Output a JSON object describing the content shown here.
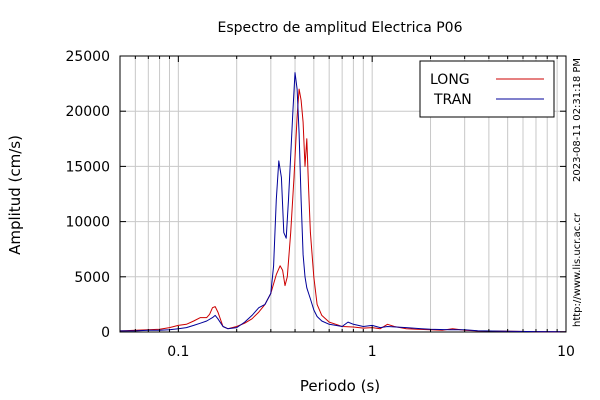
{
  "chart_data": {
    "type": "line",
    "title": "Espectro de amplitud Electrica P06",
    "xlabel": "Periodo (s)",
    "ylabel": "Amplitud (cm/s)",
    "x_scale": "log",
    "xlim": [
      0.05,
      10
    ],
    "ylim": [
      0,
      25000
    ],
    "x_ticks": [
      0.1,
      1,
      10
    ],
    "x_tick_labels": [
      "0.1",
      "1",
      "10"
    ],
    "y_ticks": [
      0,
      5000,
      10000,
      15000,
      20000,
      25000
    ],
    "y_tick_labels": [
      "0",
      "5000",
      "10000",
      "15000",
      "20000",
      "25000"
    ],
    "grid": true,
    "legend_position": "top-right",
    "side_labels": {
      "timestamp": "2023-08-11 02:31:18 PM",
      "url": "http://www.lis.ucr.ac.cr"
    },
    "series": [
      {
        "name": "LONG",
        "color": "#cc0000",
        "x": [
          0.05,
          0.06,
          0.07,
          0.08,
          0.09,
          0.1,
          0.11,
          0.12,
          0.13,
          0.14,
          0.145,
          0.15,
          0.155,
          0.16,
          0.17,
          0.18,
          0.2,
          0.22,
          0.24,
          0.26,
          0.28,
          0.3,
          0.32,
          0.335,
          0.345,
          0.355,
          0.365,
          0.38,
          0.395,
          0.41,
          0.42,
          0.43,
          0.44,
          0.45,
          0.46,
          0.47,
          0.48,
          0.5,
          0.52,
          0.55,
          0.6,
          0.65,
          0.7,
          0.8,
          0.9,
          1.0,
          1.1,
          1.2,
          1.3,
          1.5,
          1.7,
          2.0,
          2.3,
          2.6,
          3.0,
          3.5,
          5.0,
          7.0,
          10.0
        ],
        "y": [
          100,
          150,
          200,
          250,
          400,
          600,
          700,
          1000,
          1300,
          1300,
          1600,
          2200,
          2300,
          1800,
          500,
          300,
          500,
          800,
          1200,
          1800,
          2500,
          3500,
          5200,
          6000,
          5600,
          4200,
          5000,
          9000,
          14000,
          19500,
          22000,
          21000,
          19000,
          15000,
          17500,
          13000,
          9000,
          5000,
          2500,
          1500,
          900,
          700,
          500,
          450,
          350,
          400,
          300,
          700,
          500,
          300,
          250,
          200,
          150,
          300,
          150,
          100,
          60,
          40,
          30
        ]
      },
      {
        "name": "TRAN",
        "color": "#000099",
        "x": [
          0.05,
          0.06,
          0.07,
          0.08,
          0.09,
          0.1,
          0.11,
          0.12,
          0.13,
          0.14,
          0.15,
          0.155,
          0.16,
          0.17,
          0.18,
          0.2,
          0.22,
          0.24,
          0.26,
          0.28,
          0.3,
          0.31,
          0.32,
          0.33,
          0.34,
          0.35,
          0.36,
          0.37,
          0.38,
          0.39,
          0.4,
          0.41,
          0.42,
          0.43,
          0.44,
          0.45,
          0.46,
          0.47,
          0.48,
          0.5,
          0.52,
          0.55,
          0.6,
          0.65,
          0.7,
          0.75,
          0.8,
          0.9,
          1.0,
          1.1,
          1.2,
          1.5,
          1.8,
          2.0,
          2.5,
          3.0,
          3.5,
          5.0,
          7.0,
          10.0
        ],
        "y": [
          100,
          100,
          150,
          150,
          200,
          300,
          400,
          600,
          800,
          1000,
          1300,
          1500,
          1200,
          500,
          300,
          400,
          900,
          1500,
          2200,
          2500,
          3500,
          6000,
          12000,
          15500,
          14000,
          9000,
          8500,
          12000,
          16000,
          20000,
          23500,
          22000,
          18000,
          12000,
          7000,
          5000,
          4000,
          3500,
          3000,
          2000,
          1400,
          1000,
          700,
          600,
          500,
          900,
          700,
          500,
          600,
          400,
          500,
          400,
          300,
          250,
          200,
          200,
          120,
          60,
          40,
          30
        ]
      }
    ]
  }
}
